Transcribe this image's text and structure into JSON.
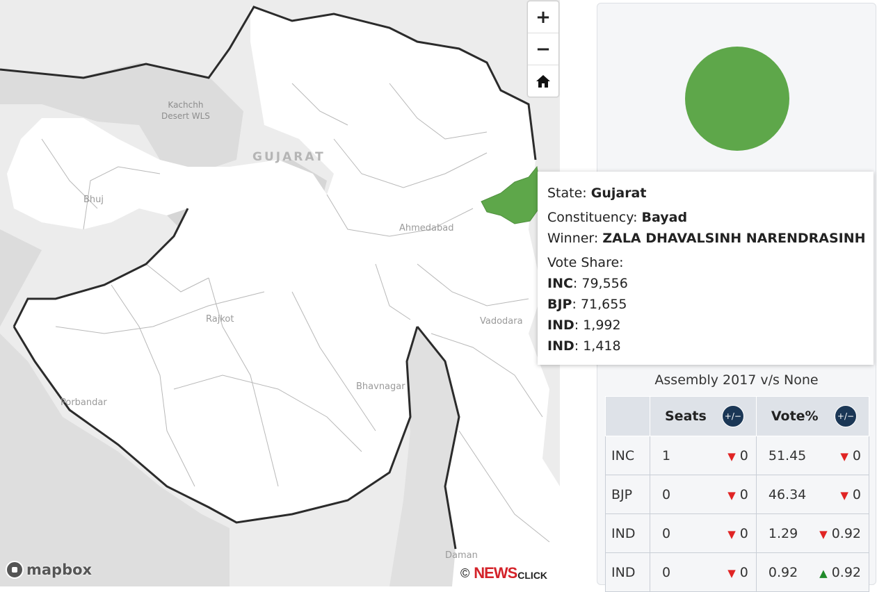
{
  "map": {
    "labels": {
      "kachchh": "Kachchh Desert WLS",
      "kachchh_line1": "Kachchh",
      "kachchh_line2": "Desert WLS",
      "state": "GUJARAT",
      "bhuj": "Bhuj",
      "ahmedabad": "Ahmedabad",
      "rajkot": "Rajkot",
      "vadodara": "Vadodara",
      "bhavnagar": "Bhavnagar",
      "porbandar": "Porbandar",
      "daman": "Daman"
    },
    "controls": {
      "zoom_in": "+",
      "zoom_out": "−",
      "home_icon": "home-icon"
    },
    "highlight_color": "#5ea74a",
    "logo": "mapbox",
    "attribution": {
      "copyright": "©",
      "brand_news": "NEWS",
      "brand_click": "CLICK"
    }
  },
  "tooltip": {
    "state_label": "State: ",
    "state": "Gujarat",
    "constituency_label": "Constituency: ",
    "constituency": "Bayad",
    "winner_label": "Winner: ",
    "winner": "ZALA DHAVALSINH NARENDRASINH",
    "vote_share_label": "Vote Share:",
    "votes": [
      {
        "party": "INC",
        "value": "79,556"
      },
      {
        "party": "BJP",
        "value": "71,655"
      },
      {
        "party": "IND",
        "value": "1,992"
      },
      {
        "party": "IND",
        "value": "1,418"
      }
    ]
  },
  "panel": {
    "circle_color": "#5ea74a",
    "title": "Assembly 2017 v/s None",
    "headers": {
      "seats": "Seats",
      "vote_pct": "Vote%",
      "pm_button": "+/−"
    },
    "rows": [
      {
        "party": "INC",
        "seats": "1",
        "seats_change": "0",
        "seats_dir": "down",
        "vote": "51.45",
        "vote_change": "0",
        "vote_dir": "down"
      },
      {
        "party": "BJP",
        "seats": "0",
        "seats_change": "0",
        "seats_dir": "down",
        "vote": "46.34",
        "vote_change": "0",
        "vote_dir": "down"
      },
      {
        "party": "IND",
        "seats": "0",
        "seats_change": "0",
        "seats_dir": "down",
        "vote": "1.29",
        "vote_change": "0.92",
        "vote_dir": "down"
      },
      {
        "party": "IND",
        "seats": "0",
        "seats_change": "0",
        "seats_dir": "down",
        "vote": "0.92",
        "vote_change": "0.92",
        "vote_dir": "up"
      }
    ]
  }
}
